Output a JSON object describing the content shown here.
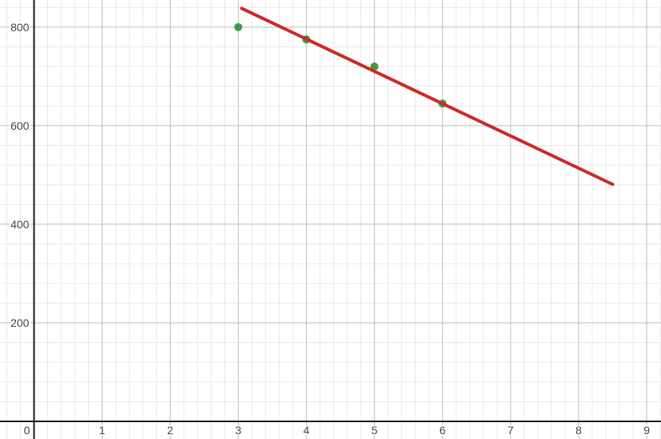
{
  "chart_data": {
    "type": "scatter",
    "title": "",
    "xlabel": "",
    "ylabel": "",
    "background": "#ffffff",
    "grid": {
      "minor_color": "#e8e8e8",
      "major_color": "#bdbdbd",
      "axis_color": "#1c1c1c",
      "label_color": "#444444",
      "minor_width": 1,
      "major_width": 1,
      "axis_width": 2
    },
    "axes": {
      "x": {
        "min": -0.5,
        "max": 9.21,
        "major_step": 1,
        "minor_divisions": 5,
        "label_values": [
          1,
          2,
          3,
          4,
          5,
          6,
          7,
          8,
          9
        ],
        "tick_labels": [
          "1",
          "2",
          "3",
          "4",
          "5",
          "6",
          "7",
          "8",
          "9"
        ],
        "origin_label": "0"
      },
      "y": {
        "min": -35.7,
        "max": 855,
        "major_step": 200,
        "minor_divisions": 5,
        "label_values": [
          200,
          400,
          600,
          800
        ],
        "tick_labels": [
          "200",
          "400",
          "600",
          "800"
        ]
      }
    },
    "series": [
      {
        "name": "data-points",
        "kind": "scatter",
        "color": "#3c9b47",
        "point_radius": 5,
        "points": [
          [
            3,
            800
          ],
          [
            4,
            775
          ],
          [
            5,
            720
          ],
          [
            6,
            645
          ]
        ]
      },
      {
        "name": "fitted-line",
        "kind": "line",
        "color": "#cc2a25",
        "stroke_width": 4,
        "linecap": "round",
        "points": [
          [
            3.05,
            838
          ],
          [
            8.5,
            481
          ]
        ]
      }
    ]
  }
}
